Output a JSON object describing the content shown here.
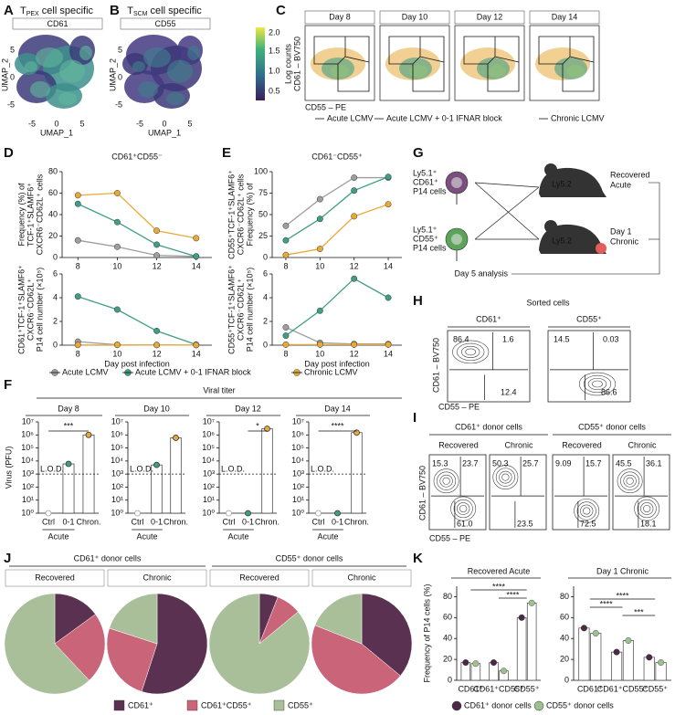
{
  "letters": [
    "A",
    "B",
    "C",
    "D",
    "E",
    "F",
    "G",
    "H",
    "I",
    "J",
    "K"
  ],
  "umap": {
    "a_title": {
      "main": "T",
      "sub": "PEX",
      "rest": " cell specific"
    },
    "a_marker": "CD61",
    "b_title": {
      "main": "T",
      "sub": "SCM",
      "rest": " cell specific"
    },
    "b_marker": "CD55",
    "ylabel": "UMAP_2",
    "xlabel": "UMAP_1",
    "xticks": [
      "-5",
      "0",
      "5"
    ],
    "yticks": [
      "5",
      "0",
      "-5"
    ],
    "colorbar_label": "Log counts",
    "colorbar_ticks": [
      "2.0",
      "1.5",
      "1.0",
      "0.5"
    ]
  },
  "flow_c": {
    "days": [
      "Day 8",
      "Day 10",
      "Day 12",
      "Day 14"
    ],
    "ylabel": "CD61 – BV750",
    "xlabel": "CD55 – PE",
    "legend": [
      "Acute LCMV",
      "Acute LCMV + 0-1 IFNAR block",
      "Chronic LCMV"
    ],
    "legend_colors": [
      "#9e9e9e",
      "#3f9e83",
      "#e8a93a"
    ]
  },
  "diagram_g": {
    "donor1": [
      "Ly5.1⁺",
      "CD61⁺",
      "P14 cells"
    ],
    "donor2": [
      "Ly5.1⁺",
      "CD55⁺",
      "P14 cells"
    ],
    "host": "Ly5.2",
    "recipient1": [
      "Recovered",
      "Acute"
    ],
    "recipient2": [
      "Day 1",
      "Chronic"
    ],
    "footer": "Day 5 analysis"
  },
  "sorted_h": {
    "title": "Sorted cells",
    "columns": [
      "CD61⁺",
      "CD55⁺"
    ],
    "gates": [
      [
        "86.4",
        "1.6",
        "12.4"
      ],
      [
        "14.5",
        "0.03",
        "86.6"
      ]
    ],
    "ylabel": "CD61 – BV750",
    "xlabel": "CD55 – PE"
  },
  "donor_i": {
    "groups": [
      "CD61⁺ donor cells",
      "CD55⁺ donor cells"
    ],
    "columns": [
      "Recovered",
      "Chronic",
      "Recovered",
      "Chronic"
    ],
    "gates": [
      [
        "15.3",
        "23.7",
        "61.0"
      ],
      [
        "50.3",
        "25.7",
        "23.5"
      ],
      [
        "9.09",
        "15.7",
        "72.5"
      ],
      [
        "45.5",
        "36.1",
        "18.1"
      ]
    ],
    "ylabel": "CD61 – BV750",
    "xlabel": "CD55 – PE"
  },
  "titer_f": {
    "title": "Viral titer",
    "group": "Acute"
  },
  "pies_j": {
    "groups": [
      "CD61⁺ donor cells",
      "CD55⁺ donor cells"
    ],
    "columns": [
      "Recovered",
      "Chronic",
      "Recovered",
      "Chronic"
    ]
  },
  "chart_data": [
    {
      "type": "line",
      "title": "CD61⁺CD55⁻",
      "x": [
        8,
        10,
        12,
        14
      ],
      "xlim": [
        7.2,
        14.8
      ],
      "xticks": [
        8,
        10,
        12,
        14
      ],
      "ylim": [
        0,
        80
      ],
      "yticks": [
        0,
        20,
        40,
        60,
        80
      ],
      "ylabel": [
        "Frequency (%) of",
        "TCF-1⁺SLAMF6⁺",
        "CXCR6⁻CD62L⁺ cells"
      ],
      "series": [
        {
          "color": "#9e9e9e",
          "values": [
            16,
            10,
            2,
            1
          ]
        },
        {
          "color": "#3f9e83",
          "values": [
            50,
            33,
            12,
            1
          ]
        },
        {
          "color": "#e8a93a",
          "values": [
            58,
            60,
            25,
            18
          ]
        }
      ]
    },
    {
      "type": "line",
      "x": [
        8,
        10,
        12,
        14
      ],
      "xlim": [
        7.2,
        14.8
      ],
      "xticks": [
        8,
        10,
        12,
        14
      ],
      "ylim": [
        0,
        6
      ],
      "yticks": [
        0,
        2,
        4,
        6
      ],
      "ylabel": [
        "CD61⁺TCF-1⁺SLAMF6⁺",
        "CXCR6⁻CD62L⁺",
        "P14 cell number (×10⁵)"
      ],
      "xlabel": "Day post infection",
      "series": [
        {
          "name": "Acute LCMV",
          "color": "#9e9e9e",
          "values": [
            0.3,
            0.03,
            0.02,
            0.01
          ]
        },
        {
          "name": "Acute LCMV + 0-1 IFNAR block",
          "color": "#3f9e83",
          "values": [
            4.1,
            3.0,
            1.2,
            0.05
          ]
        },
        {
          "name": "Chronic LCMV",
          "color": "#e8a93a",
          "values": [
            0.02,
            0.02,
            0.01,
            0.01
          ]
        }
      ]
    },
    {
      "type": "line",
      "title": "CD61⁻CD55⁺",
      "x": [
        8,
        10,
        12,
        14
      ],
      "xlim": [
        7.2,
        14.8
      ],
      "xticks": [
        8,
        10,
        12,
        14
      ],
      "ylim": [
        0,
        100
      ],
      "yticks": [
        0,
        25,
        50,
        75,
        100
      ],
      "ylabel": [
        "CD55⁺TCF-1⁺SLAMF6⁺",
        "CXCR6⁻CD62L⁺ cells",
        "Frequency (%) of"
      ],
      "series": [
        {
          "color": "#9e9e9e",
          "values": [
            37,
            68,
            93,
            93
          ]
        },
        {
          "color": "#3f9e83",
          "values": [
            20,
            45,
            78,
            94
          ]
        },
        {
          "color": "#e8a93a",
          "values": [
            3,
            10,
            48,
            62
          ]
        }
      ]
    },
    {
      "type": "line",
      "x": [
        8,
        10,
        12,
        14
      ],
      "xlim": [
        7.2,
        14.8
      ],
      "xticks": [
        8,
        10,
        12,
        14
      ],
      "ylim": [
        0,
        6
      ],
      "yticks": [
        0,
        2,
        4,
        6
      ],
      "ylabel": [
        "CD55⁺TCF-1⁺SLAMF6⁺",
        "CXCR6⁻CD62L⁺",
        "P14 cell number (×10⁵)"
      ],
      "xlabel": "Day post infection",
      "series": [
        {
          "color": "#9e9e9e",
          "values": [
            1.5,
            0.2,
            0.1,
            0.1
          ]
        },
        {
          "color": "#3f9e83",
          "values": [
            0.8,
            2.9,
            5.6,
            4.0
          ]
        },
        {
          "color": "#e8a93a",
          "values": [
            0.05,
            0.05,
            0.05,
            0.05
          ]
        }
      ]
    },
    {
      "type": "bar",
      "title": "Day 8",
      "ylabel": "Virus (PFU)",
      "categories": [
        "Ctrl",
        "0-1",
        "Chron."
      ],
      "values": [
        1,
        6000,
        1000000
      ],
      "colors": [
        "#9e9e9e",
        "#3f9e83",
        "#e8a93a"
      ],
      "log": true,
      "ylim": [
        1,
        10000000
      ],
      "yticks": [
        {
          "value": 1,
          "label": "10⁰"
        },
        {
          "value": 10,
          "label": "10¹"
        },
        {
          "value": 100,
          "label": "10²"
        },
        {
          "value": 1000,
          "label": "10³"
        },
        {
          "value": 10000,
          "label": "10⁴"
        },
        {
          "value": 100000,
          "label": "10⁵"
        },
        {
          "value": 1000000,
          "label": "10⁶"
        },
        {
          "value": 10000000,
          "label": "10⁷"
        }
      ],
      "lod": 1000,
      "lod_label": "L.O.D.",
      "significance": "***"
    },
    {
      "type": "bar",
      "title": "Day 10",
      "categories": [
        "Ctrl",
        "0-1",
        "Chron."
      ],
      "values": [
        1,
        5000,
        600000
      ],
      "colors": [
        "#9e9e9e",
        "#3f9e83",
        "#e8a93a"
      ],
      "log": true,
      "ylim": [
        1,
        10000000
      ],
      "yticks": [
        {
          "value": 1,
          "label": "10⁰"
        },
        {
          "value": 10,
          "label": "10¹"
        },
        {
          "value": 100,
          "label": "10²"
        },
        {
          "value": 1000,
          "label": "10³"
        },
        {
          "value": 10000,
          "label": "10⁴"
        },
        {
          "value": 100000,
          "label": "10⁵"
        },
        {
          "value": 1000000,
          "label": "10⁶"
        },
        {
          "value": 10000000,
          "label": "10⁷"
        }
      ],
      "lod": 1000,
      "lod_label": "L.O.D."
    },
    {
      "type": "bar",
      "title": "Day 12",
      "categories": [
        "Ctrl",
        "0-1",
        "Chron."
      ],
      "values": [
        1,
        1,
        3000000
      ],
      "colors": [
        "#9e9e9e",
        "#3f9e83",
        "#e8a93a"
      ],
      "log": true,
      "ylim": [
        1,
        10000000
      ],
      "yticks": [
        {
          "value": 1,
          "label": "10⁰"
        },
        {
          "value": 10,
          "label": "10¹"
        },
        {
          "value": 100,
          "label": "10²"
        },
        {
          "value": 1000,
          "label": "10³"
        },
        {
          "value": 10000,
          "label": "10⁴"
        },
        {
          "value": 100000,
          "label": "10⁵"
        },
        {
          "value": 1000000,
          "label": "10⁶"
        },
        {
          "value": 10000000,
          "label": "10⁷"
        }
      ],
      "lod": 1000,
      "lod_label": "L.O.D.",
      "significance": "*"
    },
    {
      "type": "bar",
      "title": "Day 14",
      "categories": [
        "Ctrl",
        "0-1",
        "Chron."
      ],
      "values": [
        1,
        1,
        1500000
      ],
      "colors": [
        "#9e9e9e",
        "#3f9e83",
        "#e8a93a"
      ],
      "log": true,
      "ylim": [
        1,
        10000000
      ],
      "yticks": [
        {
          "value": 1,
          "label": "10⁰"
        },
        {
          "value": 10,
          "label": "10¹"
        },
        {
          "value": 100,
          "label": "10²"
        },
        {
          "value": 1000,
          "label": "10³"
        },
        {
          "value": 10000,
          "label": "10⁴"
        },
        {
          "value": 100000,
          "label": "10⁵"
        },
        {
          "value": 1000000,
          "label": "10⁶"
        },
        {
          "value": 10000000,
          "label": "10⁷"
        }
      ],
      "lod": 1000,
      "lod_label": "L.O.D.",
      "significance": "****"
    },
    {
      "type": "pie",
      "categories": [
        "CD61⁺",
        "CD61⁺CD55⁺",
        "CD55⁺"
      ],
      "colors": [
        "#5b3152",
        "#c96479",
        "#a9bf99"
      ],
      "values": [
        15,
        23,
        62
      ]
    },
    {
      "type": "pie",
      "values": [
        55,
        25,
        20
      ]
    },
    {
      "type": "pie",
      "values": [
        6,
        8,
        86
      ]
    },
    {
      "type": "pie",
      "values": [
        36,
        45,
        19
      ]
    },
    {
      "type": "bar",
      "title": "Recovered Acute",
      "ylabel": "Frequency of P14 cells (%)",
      "categories": [
        "CD61⁺",
        "CD61⁺CD55⁺",
        "CD55⁺"
      ],
      "ylim": [
        0,
        90
      ],
      "yticks": [
        0,
        20,
        40,
        60,
        80
      ],
      "series": [
        {
          "name": "CD61⁺ donor cells",
          "color": "#4b2a48",
          "values": [
            17,
            17,
            60
          ]
        },
        {
          "name": "CD55⁺ donor cells",
          "color": "#9dc08f",
          "values": [
            16,
            9,
            74
          ]
        }
      ],
      "significance": [
        "****",
        "****"
      ]
    },
    {
      "type": "bar",
      "title": "Day 1 Chronic",
      "categories": [
        "CD61⁺",
        "CD61⁺CD55⁺",
        "CD55⁺"
      ],
      "ylim": [
        0,
        90
      ],
      "yticks": [
        0,
        20,
        40,
        60,
        80
      ],
      "series": [
        {
          "color": "#4b2a48",
          "values": [
            50,
            27,
            22
          ]
        },
        {
          "color": "#9dc08f",
          "values": [
            45,
            38,
            17
          ]
        }
      ],
      "significance": [
        "****",
        "****",
        "***"
      ]
    }
  ]
}
